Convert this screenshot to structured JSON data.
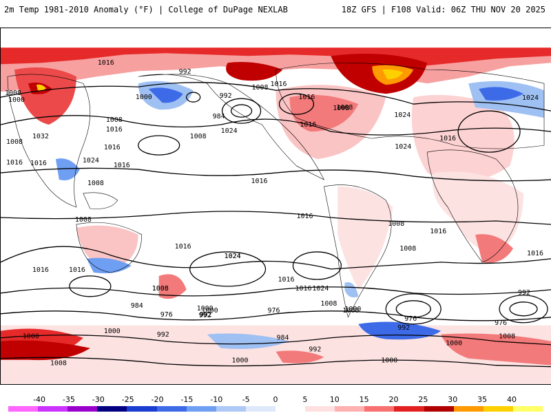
{
  "header": {
    "title_left": "2m Temp 1981-2010 Anomaly (°F) | College of DuPage NEXLAB",
    "title_right": "18Z GFS | F108 Valid: 06Z THU NOV 20 2025"
  },
  "colorbar": {
    "ticks": [
      "-40",
      "-35",
      "-30",
      "-25",
      "-20",
      "-15",
      "-10",
      "-5",
      "0",
      "5",
      "10",
      "15",
      "20",
      "25",
      "30",
      "35",
      "40"
    ],
    "colors": [
      "#ff66ff",
      "#cc33ff",
      "#9900cc",
      "#000080",
      "#1a3cd0",
      "#3d6be8",
      "#6f9ff2",
      "#aec9f5",
      "#dde9fa",
      "#ffffff",
      "#ffe0e0",
      "#ffb0b0",
      "#f87070",
      "#e22020",
      "#b00000",
      "#ff9900",
      "#ffd000",
      "#ffff66"
    ]
  },
  "map": {
    "isobar_labels": [
      {
        "t": "1016"
      },
      {
        "t": "992"
      },
      {
        "t": "1008"
      },
      {
        "t": "1000"
      },
      {
        "t": "1008"
      },
      {
        "t": "1016"
      },
      {
        "t": "1008"
      },
      {
        "t": "1016"
      },
      {
        "t": "1000"
      },
      {
        "t": "992"
      },
      {
        "t": "1024"
      },
      {
        "t": "984"
      },
      {
        "t": "1008"
      },
      {
        "t": "1016"
      },
      {
        "t": "1032"
      },
      {
        "t": "1008"
      },
      {
        "t": "1024"
      },
      {
        "t": "1016"
      },
      {
        "t": "1016"
      },
      {
        "t": "1008"
      },
      {
        "t": "1016"
      },
      {
        "t": "1016"
      },
      {
        "t": "1008"
      },
      {
        "t": "1008"
      },
      {
        "t": "1016"
      },
      {
        "t": "1024"
      },
      {
        "t": "1024"
      },
      {
        "t": "1016"
      },
      {
        "t": "1024"
      },
      {
        "t": "1008"
      },
      {
        "t": "1016"
      },
      {
        "t": "1016"
      },
      {
        "t": "1008"
      },
      {
        "t": "1008"
      },
      {
        "t": "1016"
      },
      {
        "t": "1024"
      },
      {
        "t": "1016"
      },
      {
        "t": "1016"
      },
      {
        "t": "1024"
      },
      {
        "t": "1008"
      },
      {
        "t": "1016"
      },
      {
        "t": "1000"
      },
      {
        "t": "992"
      },
      {
        "t": "1008"
      },
      {
        "t": "984"
      },
      {
        "t": "976"
      },
      {
        "t": "1000"
      },
      {
        "t": "992"
      },
      {
        "t": "976"
      },
      {
        "t": "984"
      },
      {
        "t": "1000"
      },
      {
        "t": "1000"
      },
      {
        "t": "1000"
      },
      {
        "t": "992"
      },
      {
        "t": "976"
      },
      {
        "t": "992"
      },
      {
        "t": "1000"
      },
      {
        "t": "992"
      },
      {
        "t": "976"
      },
      {
        "t": "1008"
      },
      {
        "t": "1000"
      },
      {
        "t": "1000"
      },
      {
        "t": "1008"
      },
      {
        "t": "1000"
      },
      {
        "t": "992"
      },
      {
        "t": "1016"
      },
      {
        "t": "1024"
      },
      {
        "t": "1016"
      },
      {
        "t": "1016"
      },
      {
        "t": "1008"
      }
    ]
  }
}
